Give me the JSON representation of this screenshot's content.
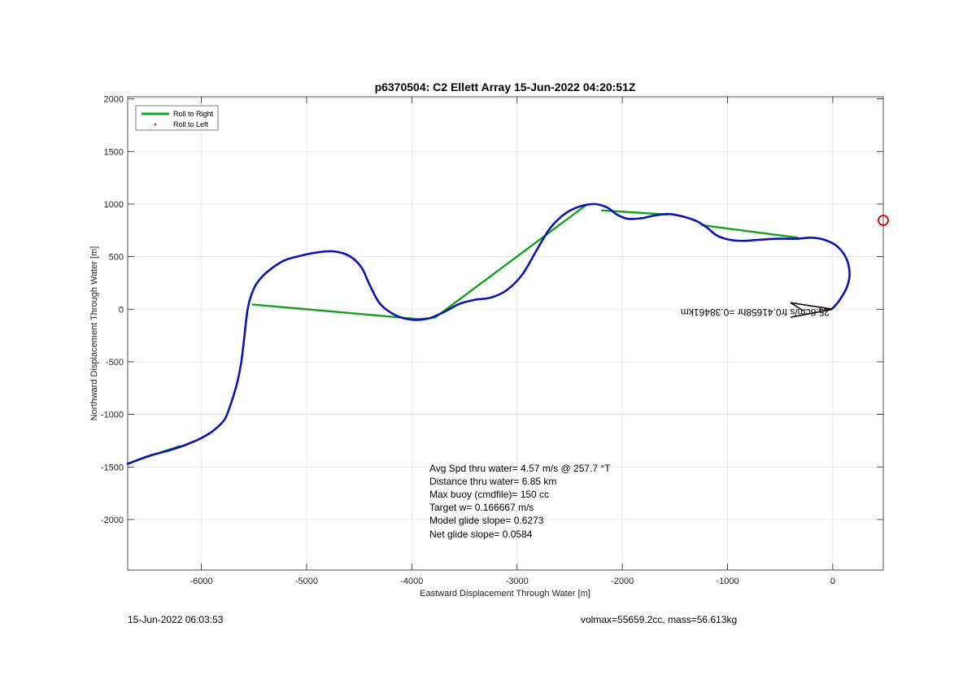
{
  "chart_data": {
    "type": "line",
    "title": "p6370504: C2 Ellett Array 15-Jun-2022 04:20:51Z",
    "xlabel": "Eastward Displacement Through Water [m]",
    "ylabel": "Northward Displacement Through Water [m]",
    "xlim": [
      -6700,
      480
    ],
    "ylim": [
      -2480,
      2020
    ],
    "xticks": [
      -6000,
      -5000,
      -4000,
      -3000,
      -2000,
      -1000,
      0
    ],
    "xtick_labels": [
      "-6000",
      "-5000",
      "-4000",
      "-3000",
      "-2000",
      "-1000",
      "0"
    ],
    "yticks": [
      -2000,
      -1500,
      -1000,
      -500,
      0,
      500,
      1000,
      1500,
      2000
    ],
    "ytick_labels": [
      "-2000",
      "-1500",
      "-1000",
      "-500",
      "0",
      "500",
      "1000",
      "1500",
      "2000"
    ],
    "grid": true,
    "legend_position": "top-left",
    "colors": {
      "track": "#0a14b4",
      "roll_right": "#16a01e",
      "roll_left": "#e0206e",
      "marker": "#d40000",
      "grid": "#e6e6e6",
      "axes": "#262626"
    },
    "series": [
      {
        "name": "Roll to Right",
        "style": "line",
        "segments": [
          [
            [
              -6700,
              -1470
            ],
            [
              -6500,
              -1400
            ],
            [
              -6200,
              -1300
            ]
          ],
          [
            [
              -5520,
              45
            ],
            [
              -3930,
              -95
            ],
            [
              -3780,
              -80
            ],
            [
              -2330,
              1000
            ]
          ],
          [
            [
              -2200,
              940
            ],
            [
              -1560,
              900
            ]
          ],
          [
            [
              -1250,
              800
            ],
            [
              -330,
              680
            ]
          ]
        ]
      },
      {
        "name": "Roll to Left",
        "style": "point",
        "points": [
          [
            -120,
            0
          ],
          [
            -70,
            0
          ]
        ]
      },
      {
        "name": "",
        "style": "track",
        "points": [
          [
            -6700,
            -1470
          ],
          [
            -6500,
            -1395
          ],
          [
            -6300,
            -1340
          ],
          [
            -6150,
            -1290
          ],
          [
            -6000,
            -1225
          ],
          [
            -5880,
            -1150
          ],
          [
            -5780,
            -1050
          ],
          [
            -5720,
            -900
          ],
          [
            -5660,
            -700
          ],
          [
            -5620,
            -500
          ],
          [
            -5590,
            -250
          ],
          [
            -5560,
            0
          ],
          [
            -5520,
            150
          ],
          [
            -5470,
            250
          ],
          [
            -5380,
            350
          ],
          [
            -5220,
            460
          ],
          [
            -5050,
            510
          ],
          [
            -4900,
            540
          ],
          [
            -4750,
            550
          ],
          [
            -4600,
            510
          ],
          [
            -4480,
            400
          ],
          [
            -4400,
            230
          ],
          [
            -4300,
            50
          ],
          [
            -4150,
            -60
          ],
          [
            -4000,
            -100
          ],
          [
            -3850,
            -90
          ],
          [
            -3700,
            -30
          ],
          [
            -3550,
            50
          ],
          [
            -3400,
            90
          ],
          [
            -3250,
            110
          ],
          [
            -3100,
            180
          ],
          [
            -2950,
            330
          ],
          [
            -2820,
            550
          ],
          [
            -2700,
            750
          ],
          [
            -2580,
            880
          ],
          [
            -2450,
            960
          ],
          [
            -2280,
            1000
          ],
          [
            -2150,
            970
          ],
          [
            -2050,
            900
          ],
          [
            -1950,
            860
          ],
          [
            -1820,
            865
          ],
          [
            -1700,
            890
          ],
          [
            -1560,
            905
          ],
          [
            -1420,
            880
          ],
          [
            -1300,
            840
          ],
          [
            -1200,
            780
          ],
          [
            -1100,
            700
          ],
          [
            -980,
            660
          ],
          [
            -850,
            650
          ],
          [
            -700,
            660
          ],
          [
            -520,
            670
          ],
          [
            -350,
            670
          ],
          [
            -200,
            680
          ],
          [
            -80,
            660
          ],
          [
            40,
            600
          ],
          [
            130,
            480
          ],
          [
            160,
            330
          ],
          [
            130,
            200
          ],
          [
            60,
            80
          ],
          [
            0,
            10
          ],
          [
            -20,
            0
          ]
        ]
      }
    ],
    "current_position_marker": [
      480,
      845
    ],
    "annotation_text": "25.8cm/s fr0.41658hr =0.38461km",
    "stats": [
      "Avg Spd thru water=  4.57 m/s @ 257.7 °T",
      "Distance thru water=  6.85 km",
      "Max buoy (cmdfile)= 150 cc",
      "Target w= 0.166667 m/s",
      "Model glide slope= 0.6273",
      "Net glide slope= 0.0584"
    ],
    "footer_left": "15-Jun-2022 06:03:53",
    "footer_right": "volmax=55659.2cc, mass=56.613kg"
  }
}
